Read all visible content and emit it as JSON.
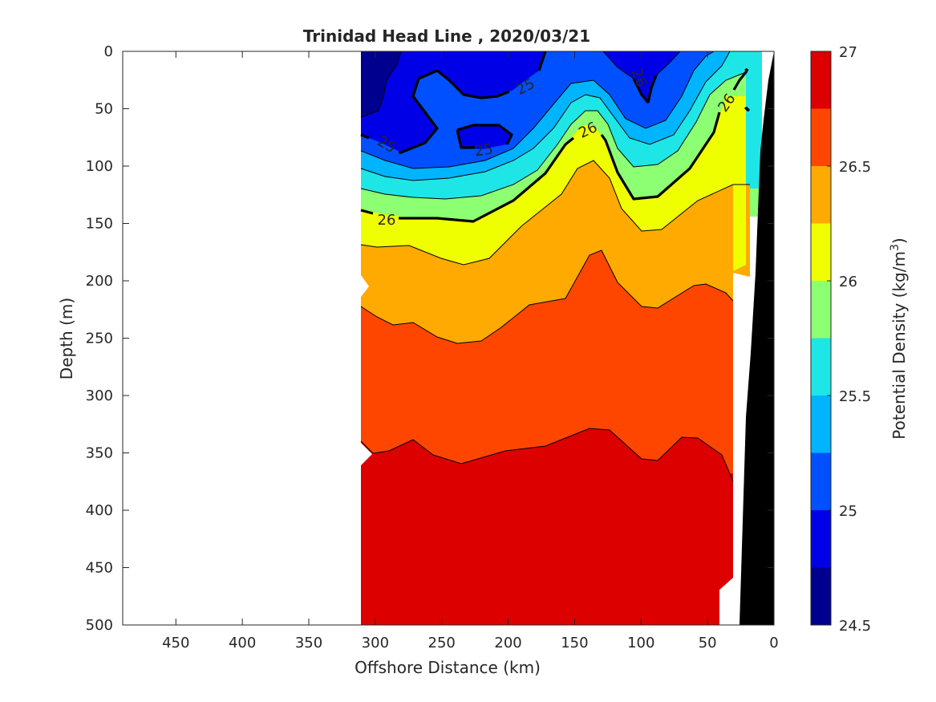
{
  "chart_data": {
    "type": "heatmap",
    "title": "Trinidad Head Line , 2020/03/21",
    "xlabel": "Offshore Distance (km)",
    "ylabel": "Depth (m)",
    "colorbar_label": "Potential Density (kg/m",
    "colorbar_label_sup": "3",
    "colorbar_label_end": ")",
    "xlim": [
      490,
      0
    ],
    "ylim": [
      0,
      500
    ],
    "x_reversed": true,
    "y_reversed": true,
    "x_ticks": [
      450,
      400,
      350,
      300,
      250,
      200,
      150,
      100,
      50,
      0
    ],
    "y_ticks": [
      0,
      50,
      100,
      150,
      200,
      250,
      300,
      350,
      400,
      450,
      500
    ],
    "color_levels": [
      24.5,
      24.75,
      25,
      25.25,
      25.5,
      25.75,
      26,
      26.25,
      26.5,
      26.75,
      27
    ],
    "colorbar_ticks": [
      24.5,
      25,
      25.5,
      26,
      26.5,
      27
    ],
    "level_colors": [
      "#00008f",
      "#0000e6",
      "#0050ff",
      "#00b4ff",
      "#1ee6e6",
      "#8cff73",
      "#f0ff00",
      "#ffaa00",
      "#ff4600",
      "#dc0000"
    ],
    "contour_labels": [
      "25",
      "25",
      "25",
      "26",
      "26",
      "26"
    ],
    "bathymetry_color": "#000000",
    "grid": false
  }
}
